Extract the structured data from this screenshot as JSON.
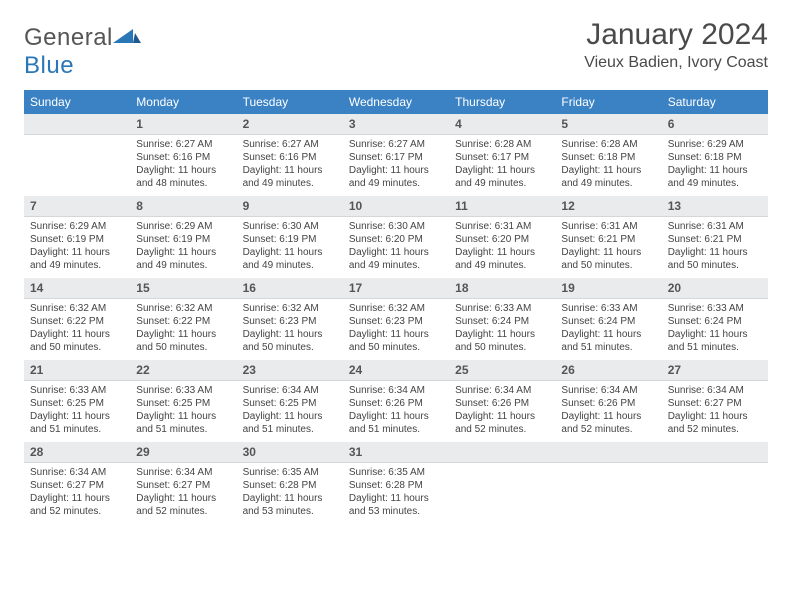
{
  "colors": {
    "header_bg": "#3b82c4",
    "header_text": "#ffffff",
    "daynum_bg": "#e9ebed",
    "daynum_border": "#d4d7da",
    "body_text": "#444444",
    "title_text": "#4a4a4a",
    "logo_dark": "#555555",
    "logo_blue": "#2a77b8",
    "page_bg": "#ffffff"
  },
  "logo": {
    "part1": "General",
    "part2": "Blue"
  },
  "title": "January 2024",
  "subtitle": "Vieux Badien, Ivory Coast",
  "weekdays": [
    "Sunday",
    "Monday",
    "Tuesday",
    "Wednesday",
    "Thursday",
    "Friday",
    "Saturday"
  ],
  "grid": {
    "first_weekday_index": 1,
    "num_days": 31
  },
  "days": [
    {
      "n": 1,
      "sunrise": "Sunrise: 6:27 AM",
      "sunset": "Sunset: 6:16 PM",
      "day1": "Daylight: 11 hours",
      "day2": "and 48 minutes."
    },
    {
      "n": 2,
      "sunrise": "Sunrise: 6:27 AM",
      "sunset": "Sunset: 6:16 PM",
      "day1": "Daylight: 11 hours",
      "day2": "and 49 minutes."
    },
    {
      "n": 3,
      "sunrise": "Sunrise: 6:27 AM",
      "sunset": "Sunset: 6:17 PM",
      "day1": "Daylight: 11 hours",
      "day2": "and 49 minutes."
    },
    {
      "n": 4,
      "sunrise": "Sunrise: 6:28 AM",
      "sunset": "Sunset: 6:17 PM",
      "day1": "Daylight: 11 hours",
      "day2": "and 49 minutes."
    },
    {
      "n": 5,
      "sunrise": "Sunrise: 6:28 AM",
      "sunset": "Sunset: 6:18 PM",
      "day1": "Daylight: 11 hours",
      "day2": "and 49 minutes."
    },
    {
      "n": 6,
      "sunrise": "Sunrise: 6:29 AM",
      "sunset": "Sunset: 6:18 PM",
      "day1": "Daylight: 11 hours",
      "day2": "and 49 minutes."
    },
    {
      "n": 7,
      "sunrise": "Sunrise: 6:29 AM",
      "sunset": "Sunset: 6:19 PM",
      "day1": "Daylight: 11 hours",
      "day2": "and 49 minutes."
    },
    {
      "n": 8,
      "sunrise": "Sunrise: 6:29 AM",
      "sunset": "Sunset: 6:19 PM",
      "day1": "Daylight: 11 hours",
      "day2": "and 49 minutes."
    },
    {
      "n": 9,
      "sunrise": "Sunrise: 6:30 AM",
      "sunset": "Sunset: 6:19 PM",
      "day1": "Daylight: 11 hours",
      "day2": "and 49 minutes."
    },
    {
      "n": 10,
      "sunrise": "Sunrise: 6:30 AM",
      "sunset": "Sunset: 6:20 PM",
      "day1": "Daylight: 11 hours",
      "day2": "and 49 minutes."
    },
    {
      "n": 11,
      "sunrise": "Sunrise: 6:31 AM",
      "sunset": "Sunset: 6:20 PM",
      "day1": "Daylight: 11 hours",
      "day2": "and 49 minutes."
    },
    {
      "n": 12,
      "sunrise": "Sunrise: 6:31 AM",
      "sunset": "Sunset: 6:21 PM",
      "day1": "Daylight: 11 hours",
      "day2": "and 50 minutes."
    },
    {
      "n": 13,
      "sunrise": "Sunrise: 6:31 AM",
      "sunset": "Sunset: 6:21 PM",
      "day1": "Daylight: 11 hours",
      "day2": "and 50 minutes."
    },
    {
      "n": 14,
      "sunrise": "Sunrise: 6:32 AM",
      "sunset": "Sunset: 6:22 PM",
      "day1": "Daylight: 11 hours",
      "day2": "and 50 minutes."
    },
    {
      "n": 15,
      "sunrise": "Sunrise: 6:32 AM",
      "sunset": "Sunset: 6:22 PM",
      "day1": "Daylight: 11 hours",
      "day2": "and 50 minutes."
    },
    {
      "n": 16,
      "sunrise": "Sunrise: 6:32 AM",
      "sunset": "Sunset: 6:23 PM",
      "day1": "Daylight: 11 hours",
      "day2": "and 50 minutes."
    },
    {
      "n": 17,
      "sunrise": "Sunrise: 6:32 AM",
      "sunset": "Sunset: 6:23 PM",
      "day1": "Daylight: 11 hours",
      "day2": "and 50 minutes."
    },
    {
      "n": 18,
      "sunrise": "Sunrise: 6:33 AM",
      "sunset": "Sunset: 6:24 PM",
      "day1": "Daylight: 11 hours",
      "day2": "and 50 minutes."
    },
    {
      "n": 19,
      "sunrise": "Sunrise: 6:33 AM",
      "sunset": "Sunset: 6:24 PM",
      "day1": "Daylight: 11 hours",
      "day2": "and 51 minutes."
    },
    {
      "n": 20,
      "sunrise": "Sunrise: 6:33 AM",
      "sunset": "Sunset: 6:24 PM",
      "day1": "Daylight: 11 hours",
      "day2": "and 51 minutes."
    },
    {
      "n": 21,
      "sunrise": "Sunrise: 6:33 AM",
      "sunset": "Sunset: 6:25 PM",
      "day1": "Daylight: 11 hours",
      "day2": "and 51 minutes."
    },
    {
      "n": 22,
      "sunrise": "Sunrise: 6:33 AM",
      "sunset": "Sunset: 6:25 PM",
      "day1": "Daylight: 11 hours",
      "day2": "and 51 minutes."
    },
    {
      "n": 23,
      "sunrise": "Sunrise: 6:34 AM",
      "sunset": "Sunset: 6:25 PM",
      "day1": "Daylight: 11 hours",
      "day2": "and 51 minutes."
    },
    {
      "n": 24,
      "sunrise": "Sunrise: 6:34 AM",
      "sunset": "Sunset: 6:26 PM",
      "day1": "Daylight: 11 hours",
      "day2": "and 51 minutes."
    },
    {
      "n": 25,
      "sunrise": "Sunrise: 6:34 AM",
      "sunset": "Sunset: 6:26 PM",
      "day1": "Daylight: 11 hours",
      "day2": "and 52 minutes."
    },
    {
      "n": 26,
      "sunrise": "Sunrise: 6:34 AM",
      "sunset": "Sunset: 6:26 PM",
      "day1": "Daylight: 11 hours",
      "day2": "and 52 minutes."
    },
    {
      "n": 27,
      "sunrise": "Sunrise: 6:34 AM",
      "sunset": "Sunset: 6:27 PM",
      "day1": "Daylight: 11 hours",
      "day2": "and 52 minutes."
    },
    {
      "n": 28,
      "sunrise": "Sunrise: 6:34 AM",
      "sunset": "Sunset: 6:27 PM",
      "day1": "Daylight: 11 hours",
      "day2": "and 52 minutes."
    },
    {
      "n": 29,
      "sunrise": "Sunrise: 6:34 AM",
      "sunset": "Sunset: 6:27 PM",
      "day1": "Daylight: 11 hours",
      "day2": "and 52 minutes."
    },
    {
      "n": 30,
      "sunrise": "Sunrise: 6:35 AM",
      "sunset": "Sunset: 6:28 PM",
      "day1": "Daylight: 11 hours",
      "day2": "and 53 minutes."
    },
    {
      "n": 31,
      "sunrise": "Sunrise: 6:35 AM",
      "sunset": "Sunset: 6:28 PM",
      "day1": "Daylight: 11 hours",
      "day2": "and 53 minutes."
    }
  ]
}
